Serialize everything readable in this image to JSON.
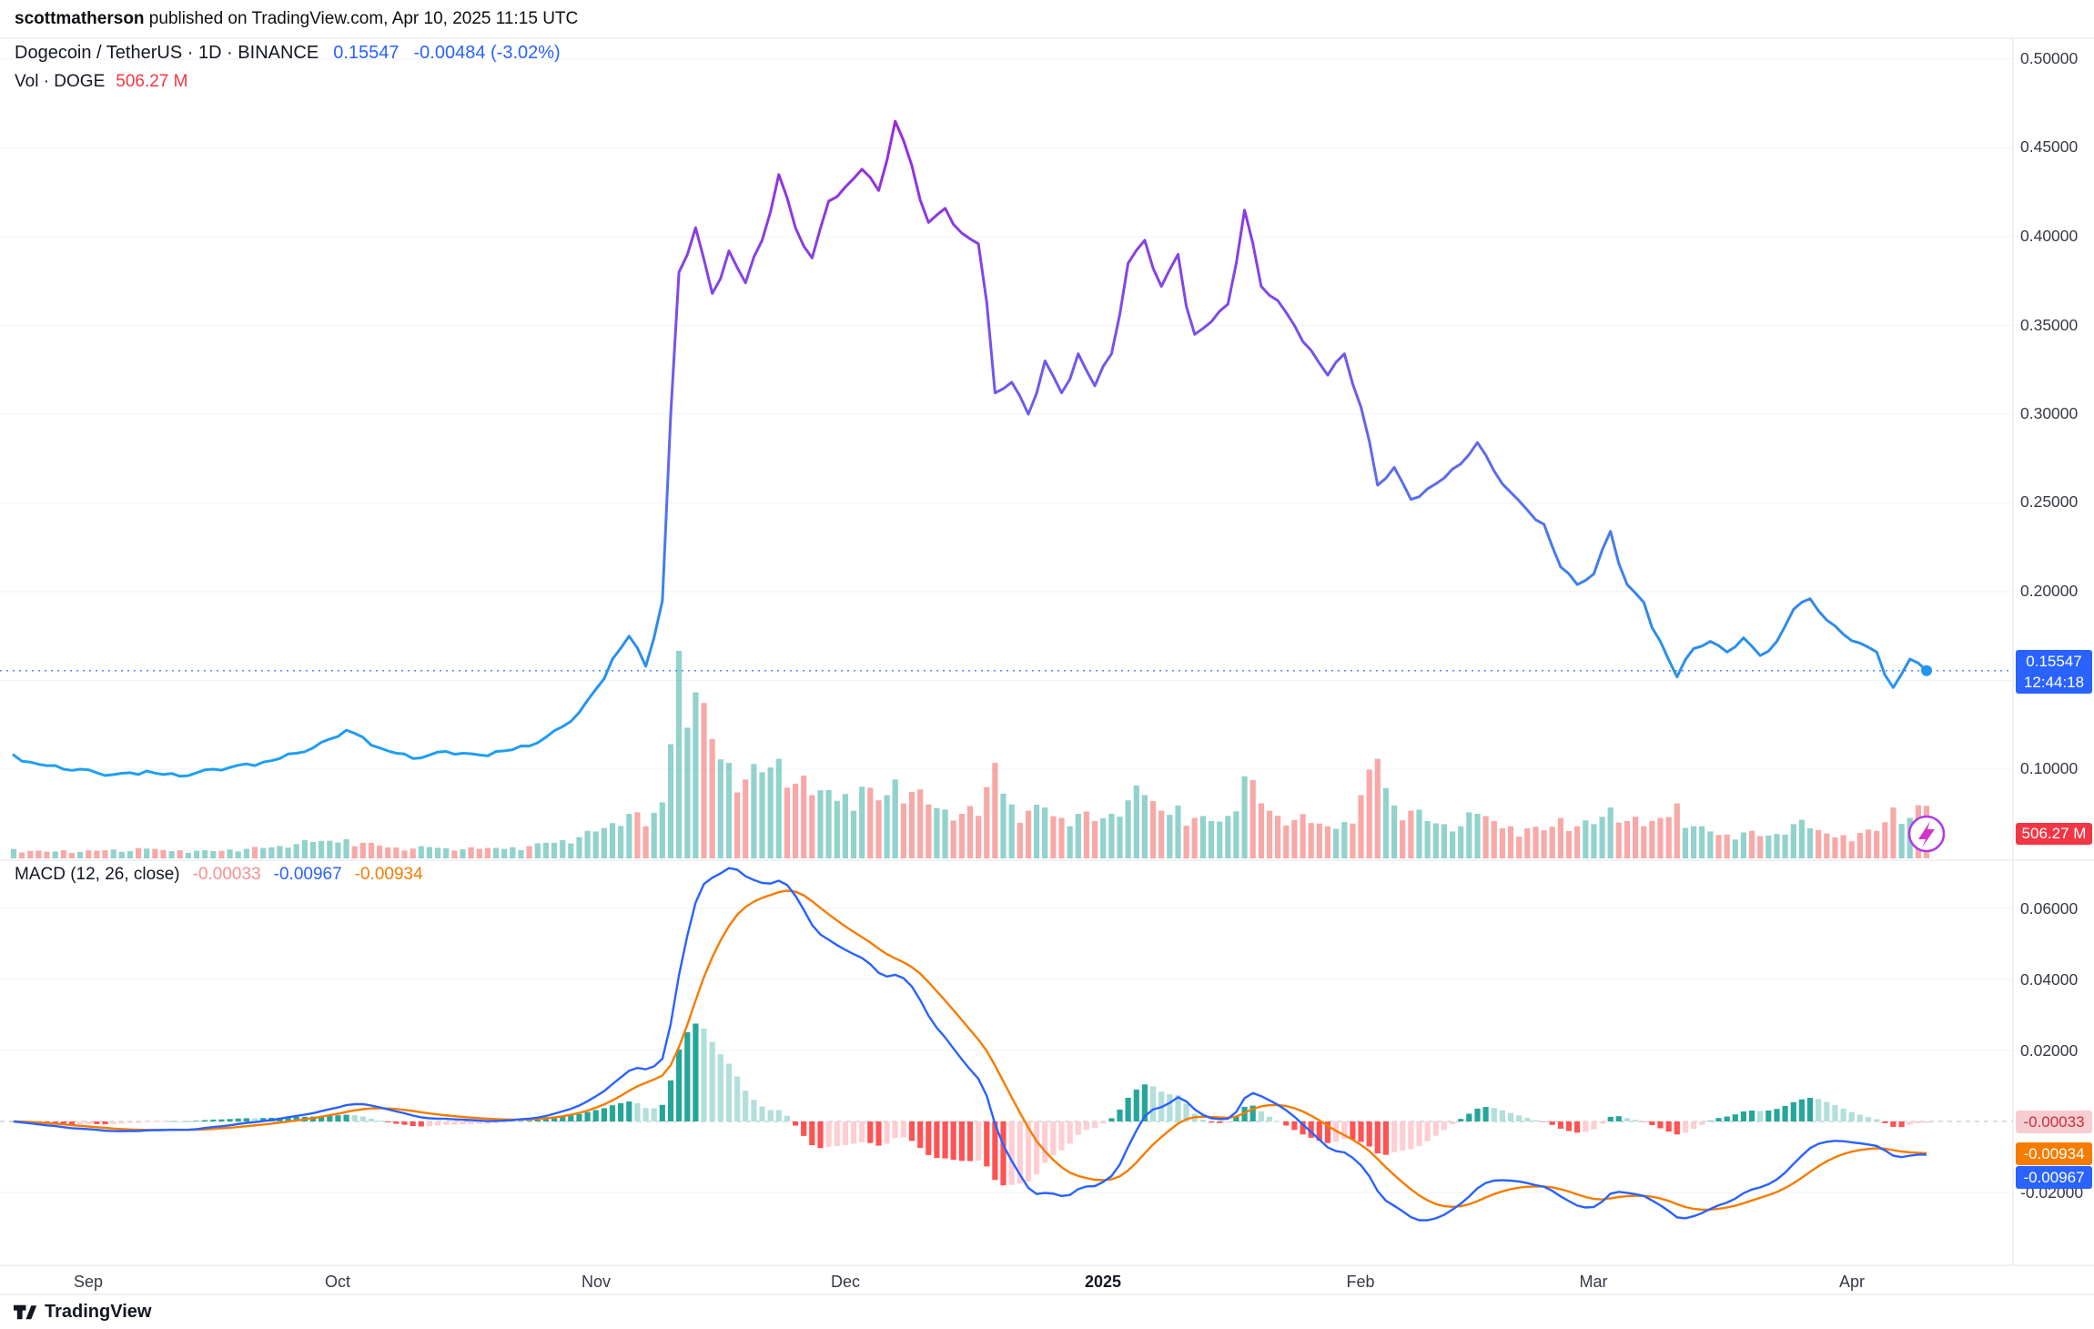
{
  "publisher": {
    "name": "scottmatherson",
    "rest": " published on TradingView.com, Apr 10, 2025 11:15 UTC"
  },
  "symbol": {
    "title": "Dogecoin / TetherUS · 1D · BINANCE",
    "price": "0.15547",
    "change": "-0.00484 (-3.02%)"
  },
  "volume_row": {
    "label": "Vol · DOGE",
    "value": "506.27 M"
  },
  "price_axis": {
    "labels": [
      "0.50000",
      "0.45000",
      "0.40000",
      "0.35000",
      "0.30000",
      "0.25000",
      "0.20000",
      "0.10000"
    ],
    "current_badge": {
      "price": "0.15547",
      "countdown": "12:44:18"
    },
    "volume_badge": "506.27 M"
  },
  "macd": {
    "label": "MACD (12, 26, close)",
    "hist_value": "-0.00033",
    "macd_value": "-0.00967",
    "signal_value": "-0.00934",
    "axis_labels": [
      "0.06000",
      "0.04000",
      "0.02000",
      "-0.02000"
    ],
    "badges": {
      "hist": "-0.00033",
      "signal": "-0.00934",
      "macd": "-0.00967"
    }
  },
  "time_axis": {
    "labels": [
      "Sep",
      "Oct",
      "Nov",
      "Dec",
      "2025",
      "Feb",
      "Mar",
      "Apr"
    ]
  },
  "footer": {
    "brand": "TradingView"
  },
  "colors": {
    "accent_blue": "#2962FF",
    "up_teal": "rgba(38,166,154,0.5)",
    "down_red": "rgba(239,83,80,0.5)",
    "vol_badge_red": "#F23645",
    "macd_line": "#2962FF",
    "signal_line": "#F57C00",
    "hist_pos": "#26A69A",
    "hist_pos_weak": "#B2DFDB",
    "hist_neg": "#FF5252",
    "hist_neg_weak": "#FFCDD2",
    "line_gradient_top": "#9C27D9",
    "line_gradient_bottom": "#1FA0F2"
  },
  "chart_data": {
    "type": "line",
    "title": "Dogecoin / TetherUS · 1D · BINANCE",
    "x_range": [
      "2024-08-23",
      "2025-04-10"
    ],
    "x_tick_labels": [
      "Sep",
      "Oct",
      "Nov",
      "Dec",
      "2025",
      "Feb",
      "Mar",
      "Apr"
    ],
    "sampling": "close price and volume sampled every 2 days from the published chart",
    "price_axis": {
      "ylim": [
        0.1,
        0.5
      ],
      "ticks": [
        0.5,
        0.45,
        0.4,
        0.35,
        0.3,
        0.25,
        0.2,
        0.1
      ],
      "last": 0.15547
    },
    "volume_axis": {
      "unit": "M DOGE",
      "scale_max_m": 2000,
      "last": 506.27
    },
    "macd_axis": {
      "ylim": [
        -0.025,
        0.065
      ],
      "ticks": [
        0.06,
        0.04,
        0.02,
        -0.02
      ],
      "last_macd": -0.00967,
      "last_signal": -0.00934,
      "last_hist": -0.00033
    },
    "macd_note": "MACD(12,26,9) lines and histogram are derived from the price series at render time",
    "price": {
      "name": "DOGEUSDT close",
      "values": [
        0.108,
        0.104,
        0.102,
        0.1,
        0.1,
        0.098,
        0.097,
        0.098,
        0.099,
        0.097,
        0.096,
        0.098,
        0.1,
        0.101,
        0.103,
        0.104,
        0.106,
        0.109,
        0.112,
        0.117,
        0.122,
        0.118,
        0.112,
        0.109,
        0.106,
        0.108,
        0.11,
        0.109,
        0.108,
        0.11,
        0.111,
        0.113,
        0.118,
        0.124,
        0.132,
        0.145,
        0.162,
        0.175,
        0.158,
        0.195,
        0.38,
        0.405,
        0.368,
        0.392,
        0.374,
        0.398,
        0.435,
        0.405,
        0.388,
        0.42,
        0.428,
        0.438,
        0.426,
        0.465,
        0.44,
        0.408,
        0.416,
        0.402,
        0.396,
        0.312,
        0.318,
        0.3,
        0.33,
        0.312,
        0.334,
        0.316,
        0.334,
        0.385,
        0.398,
        0.372,
        0.39,
        0.345,
        0.352,
        0.362,
        0.415,
        0.372,
        0.364,
        0.35,
        0.336,
        0.322,
        0.334,
        0.304,
        0.26,
        0.27,
        0.252,
        0.258,
        0.264,
        0.272,
        0.284,
        0.268,
        0.256,
        0.246,
        0.238,
        0.214,
        0.204,
        0.21,
        0.234,
        0.204,
        0.194,
        0.172,
        0.152,
        0.168,
        0.172,
        0.166,
        0.174,
        0.164,
        0.172,
        0.19,
        0.196,
        0.184,
        0.176,
        0.171,
        0.166,
        0.146,
        0.162,
        0.15547
      ]
    },
    "volume": {
      "name": "Volume (millions DOGE)",
      "last": 506.27,
      "values": [
        90,
        72,
        65,
        80,
        62,
        75,
        85,
        70,
        95,
        82,
        78,
        74,
        70,
        86,
        92,
        100,
        118,
        138,
        158,
        170,
        185,
        150,
        125,
        105,
        95,
        110,
        98,
        88,
        92,
        102,
        108,
        118,
        150,
        175,
        205,
        260,
        340,
        430,
        310,
        540,
        2000,
        1600,
        1150,
        920,
        760,
        830,
        960,
        720,
        610,
        660,
        620,
        690,
        560,
        760,
        640,
        520,
        470,
        430,
        410,
        920,
        520,
        460,
        490,
        390,
        430,
        360,
        430,
        560,
        610,
        460,
        510,
        390,
        360,
        410,
        790,
        530,
        410,
        370,
        340,
        310,
        350,
        610,
        960,
        510,
        460,
        360,
        330,
        310,
        430,
        360,
        310,
        290,
        270,
        390,
        310,
        330,
        490,
        360,
        310,
        390,
        530,
        310,
        260,
        230,
        250,
        215,
        235,
        330,
        290,
        240,
        225,
        245,
        265,
        490,
        390,
        506.27
      ]
    }
  }
}
